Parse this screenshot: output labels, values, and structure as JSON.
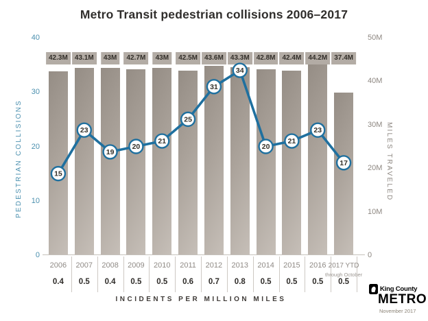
{
  "title": "Metro Transit pedestrian collisions 2006–2017",
  "chart_data": {
    "type": "bar+line combo",
    "categories": [
      "2006",
      "2007",
      "2008",
      "2009",
      "2010",
      "2011",
      "2012",
      "2013",
      "2014",
      "2015",
      "2016",
      "2017 YTD"
    ],
    "last_category_note": "through October",
    "series": [
      {
        "name": "Miles traveled",
        "type": "bar",
        "axis": "right",
        "values": [
          42.3,
          43.1,
          43.0,
          42.7,
          43.0,
          42.5,
          43.6,
          43.3,
          42.8,
          42.4,
          44.2,
          37.4
        ],
        "value_labels": [
          "42.3M",
          "43.1M",
          "43M",
          "42.7M",
          "43M",
          "42.5M",
          "43.6M",
          "43.3M",
          "42.8M",
          "42.4M",
          "44.2M",
          "37.4M"
        ]
      },
      {
        "name": "Pedestrian collisions",
        "type": "line",
        "axis": "left",
        "values": [
          15,
          23,
          19,
          20,
          21,
          25,
          31,
          34,
          20,
          21,
          23,
          17
        ]
      }
    ],
    "incidents_per_million_miles": [
      "0.4",
      "0.5",
      "0.4",
      "0.5",
      "0.5",
      "0.6",
      "0.7",
      "0.8",
      "0.5",
      "0.5",
      "0.5",
      "0.5"
    ],
    "footer_label": "INCIDENTS PER MILLION MILES",
    "left_axis": {
      "label": "PEDESTRIAN COLLISIONS",
      "ticks": [
        0,
        10,
        20,
        30,
        40
      ],
      "range": [
        0,
        40
      ]
    },
    "right_axis": {
      "label": "MILES TRAVELED",
      "ticks": [
        "0",
        "10M",
        "20M",
        "30M",
        "40M",
        "50M"
      ],
      "tick_values": [
        0,
        10,
        20,
        30,
        40,
        50
      ],
      "range": [
        0,
        50
      ]
    },
    "grid": false,
    "legend": "none"
  },
  "colors": {
    "line": "#1f709f",
    "point_fill": "#ffffff",
    "point_text": "#333029",
    "left_axis_text": "#4a8fae",
    "right_axis_text": "#8d8781",
    "bar_dark": "#958d85",
    "bar_light": "#c6bfb8",
    "bar_label_bg": "#b3aca5"
  },
  "logo": {
    "agency": "King County",
    "brand": "METRO",
    "date": "November 2017"
  }
}
